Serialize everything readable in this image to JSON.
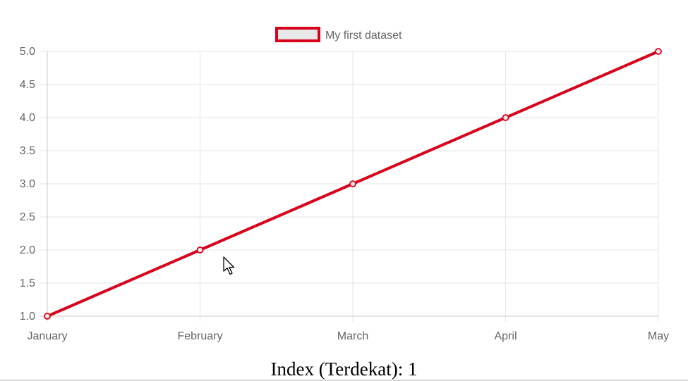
{
  "chart_data": {
    "type": "line",
    "categories": [
      "January",
      "February",
      "March",
      "April",
      "May"
    ],
    "series": [
      {
        "name": "My first dataset",
        "values": [
          1,
          2,
          3,
          4,
          5
        ],
        "border_color": "#d9001b",
        "fill_color": "#e8e8e8"
      }
    ],
    "ylim": [
      1,
      5
    ],
    "y_step": 0.5,
    "y_ticks": [
      "1.0",
      "1.5",
      "2.0",
      "2.5",
      "3.0",
      "3.5",
      "4.0",
      "4.5",
      "5.0"
    ],
    "grid": true,
    "legend_position": "top"
  },
  "readout": {
    "text": "Index (Terdekat): 1"
  },
  "cursor_icon": "mouse-pointer-icon"
}
